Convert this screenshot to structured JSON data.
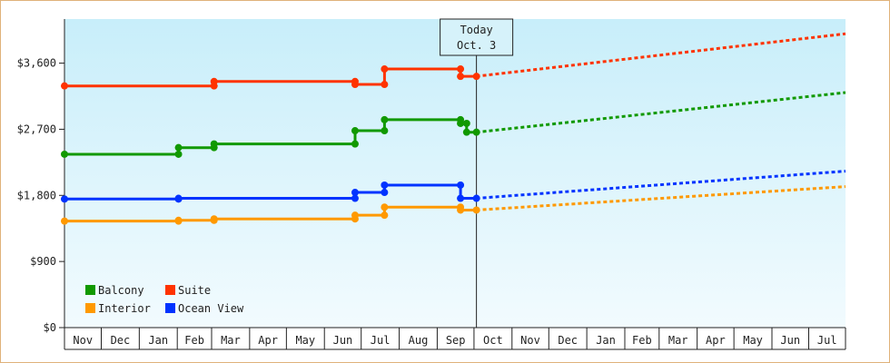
{
  "chart_data": {
    "type": "line",
    "title": "",
    "xlabel": "",
    "ylabel": "",
    "y_ticks": [
      "$0",
      "$900",
      "$1,800",
      "$2,700",
      "$3,600"
    ],
    "y_tick_values": [
      0,
      900,
      1800,
      2700,
      3600
    ],
    "ylim": [
      0,
      4200
    ],
    "months": [
      "Nov",
      "Dec",
      "Jan",
      "Feb",
      "Mar",
      "Apr",
      "May",
      "Jun",
      "Jul",
      "Aug",
      "Sep",
      "Oct",
      "Nov",
      "Dec",
      "Jan",
      "Feb",
      "Mar",
      "Apr",
      "May",
      "Jun",
      "Jul"
    ],
    "xlim": [
      "2024-11-01",
      "2026-07-31"
    ],
    "today": {
      "date": "2025-10-03",
      "line1": "Today",
      "line2": "Oct. 3"
    },
    "background": {
      "top": "#c8eefa",
      "bottom": "#f2fbfe"
    },
    "grid": false,
    "legend": {
      "position": "bottom-left",
      "order": [
        "Balcony",
        "Suite",
        "Interior",
        "Ocean View"
      ]
    },
    "series": [
      {
        "name": "Suite",
        "color": "#ff3300",
        "history": [
          [
            "2024-11-01",
            3290
          ],
          [
            "2025-03-03",
            3290
          ],
          [
            "2025-03-03",
            3350
          ],
          [
            "2025-06-26",
            3350
          ],
          [
            "2025-06-26",
            3310
          ],
          [
            "2025-07-20",
            3310
          ],
          [
            "2025-07-20",
            3520
          ],
          [
            "2025-09-20",
            3520
          ],
          [
            "2025-09-20",
            3420
          ],
          [
            "2025-10-03",
            3420
          ]
        ],
        "markers": [
          [
            "2025-03-03",
            3290
          ],
          [
            "2025-03-03",
            3350
          ],
          [
            "2025-06-26",
            3350
          ],
          [
            "2025-06-26",
            3310
          ],
          [
            "2025-07-20",
            3310
          ],
          [
            "2025-07-20",
            3520
          ],
          [
            "2025-09-20",
            3520
          ],
          [
            "2025-09-20",
            3420
          ],
          [
            "2025-10-03",
            3420
          ]
        ],
        "forecast": [
          [
            "2025-10-03",
            3420
          ],
          [
            "2026-07-31",
            4000
          ]
        ]
      },
      {
        "name": "Balcony",
        "color": "#119900",
        "history": [
          [
            "2024-11-01",
            2360
          ],
          [
            "2025-02-02",
            2360
          ],
          [
            "2025-02-02",
            2450
          ],
          [
            "2025-03-03",
            2450
          ],
          [
            "2025-03-03",
            2500
          ],
          [
            "2025-06-26",
            2500
          ],
          [
            "2025-06-26",
            2680
          ],
          [
            "2025-07-20",
            2680
          ],
          [
            "2025-07-20",
            2830
          ],
          [
            "2025-09-20",
            2830
          ],
          [
            "2025-09-20",
            2780
          ],
          [
            "2025-09-25",
            2780
          ],
          [
            "2025-09-25",
            2660
          ],
          [
            "2025-10-03",
            2660
          ]
        ],
        "markers": [
          [
            "2025-02-02",
            2360
          ],
          [
            "2025-02-02",
            2450
          ],
          [
            "2025-03-03",
            2450
          ],
          [
            "2025-03-03",
            2500
          ],
          [
            "2025-06-26",
            2500
          ],
          [
            "2025-06-26",
            2680
          ],
          [
            "2025-07-20",
            2680
          ],
          [
            "2025-07-20",
            2830
          ],
          [
            "2025-09-20",
            2830
          ],
          [
            "2025-09-20",
            2780
          ],
          [
            "2025-09-25",
            2780
          ],
          [
            "2025-09-25",
            2660
          ],
          [
            "2025-10-03",
            2660
          ]
        ],
        "forecast": [
          [
            "2025-10-03",
            2660
          ],
          [
            "2026-07-31",
            3200
          ]
        ]
      },
      {
        "name": "Ocean View",
        "color": "#0033ff",
        "history": [
          [
            "2024-11-01",
            1750
          ],
          [
            "2025-02-02",
            1750
          ],
          [
            "2025-02-02",
            1760
          ],
          [
            "2025-06-26",
            1760
          ],
          [
            "2025-06-26",
            1840
          ],
          [
            "2025-07-20",
            1840
          ],
          [
            "2025-07-20",
            1940
          ],
          [
            "2025-09-20",
            1940
          ],
          [
            "2025-09-20",
            1760
          ],
          [
            "2025-10-03",
            1760
          ]
        ],
        "markers": [
          [
            "2025-02-02",
            1750
          ],
          [
            "2025-02-02",
            1760
          ],
          [
            "2025-06-26",
            1760
          ],
          [
            "2025-06-26",
            1840
          ],
          [
            "2025-07-20",
            1840
          ],
          [
            "2025-07-20",
            1940
          ],
          [
            "2025-09-20",
            1940
          ],
          [
            "2025-09-20",
            1760
          ],
          [
            "2025-10-03",
            1760
          ]
        ],
        "forecast": [
          [
            "2025-10-03",
            1760
          ],
          [
            "2026-07-31",
            2130
          ]
        ]
      },
      {
        "name": "Interior",
        "color": "#ff9900",
        "history": [
          [
            "2024-11-01",
            1450
          ],
          [
            "2025-02-02",
            1450
          ],
          [
            "2025-02-02",
            1460
          ],
          [
            "2025-03-03",
            1460
          ],
          [
            "2025-03-03",
            1480
          ],
          [
            "2025-06-26",
            1480
          ],
          [
            "2025-06-26",
            1530
          ],
          [
            "2025-07-20",
            1530
          ],
          [
            "2025-07-20",
            1640
          ],
          [
            "2025-09-20",
            1640
          ],
          [
            "2025-09-20",
            1600
          ],
          [
            "2025-10-03",
            1600
          ]
        ],
        "markers": [
          [
            "2025-02-02",
            1450
          ],
          [
            "2025-02-02",
            1460
          ],
          [
            "2025-03-03",
            1460
          ],
          [
            "2025-03-03",
            1480
          ],
          [
            "2025-06-26",
            1480
          ],
          [
            "2025-06-26",
            1530
          ],
          [
            "2025-07-20",
            1530
          ],
          [
            "2025-07-20",
            1640
          ],
          [
            "2025-09-20",
            1640
          ],
          [
            "2025-09-20",
            1600
          ],
          [
            "2025-10-03",
            1600
          ]
        ],
        "forecast": [
          [
            "2025-10-03",
            1600
          ],
          [
            "2026-07-31",
            1920
          ]
        ]
      }
    ]
  }
}
